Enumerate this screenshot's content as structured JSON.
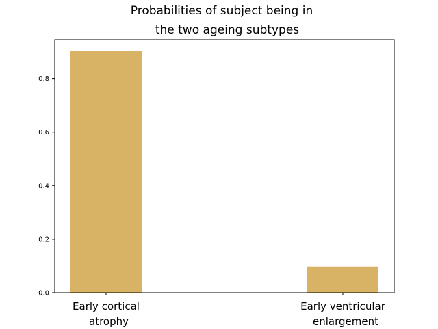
{
  "chart_data": {
    "type": "bar",
    "title_lines": [
      "Probabilities of subject being in",
      "the two ageing subtypes"
    ],
    "categories": [
      {
        "lines": [
          "Early cortical",
          "atrophy"
        ]
      },
      {
        "lines": [
          "Early ventricular",
          "enlargement"
        ]
      }
    ],
    "values": [
      0.902,
      0.098
    ],
    "xlabel": "",
    "ylabel": "",
    "ylim": [
      0,
      0.945
    ],
    "yticks": [
      "0.0",
      "0.2",
      "0.4",
      "0.6",
      "0.8"
    ],
    "bar_color": "#d8b365",
    "grid": false
  }
}
